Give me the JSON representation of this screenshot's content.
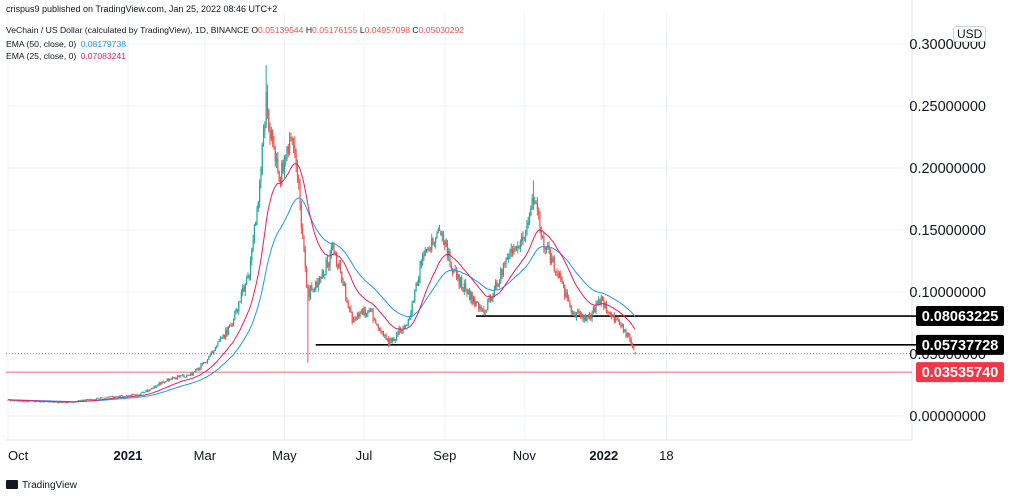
{
  "header": {
    "published": "crispus9 published on TradingView.com, Jan 25, 2022 08:46 UTC+2",
    "symbol": "VeChain / US Dollar (calculated by TradingView), 1D, BINANCE",
    "ohlc": [
      {
        "k": "O",
        "v": "0.05139544"
      },
      {
        "k": "H",
        "v": "0.05176155"
      },
      {
        "k": "L",
        "v": "0.04957098"
      },
      {
        "k": "C",
        "v": "0.05030292"
      }
    ],
    "ema50_label": "EMA (50, close, 0)",
    "ema50_value": "0.08179738",
    "ema25_label": "EMA (25, close, 0)",
    "ema25_value": "0.07083241"
  },
  "currency": "USD",
  "footer": {
    "brand": "TradingView"
  },
  "colors": {
    "up": "#26a69a",
    "down": "#ef5350",
    "ema50": "#2196f3",
    "ema25": "#e91e63",
    "support": "#000000",
    "marker": "#f23645"
  },
  "chart_data": {
    "type": "candlestick",
    "y_scale": "linear",
    "ylim": [
      -0.02,
      0.32
    ],
    "grid": true,
    "y_ticks": [
      "0.00000000",
      "0.05000000",
      "0.10000000",
      "0.15000000",
      "0.20000000",
      "0.25000000",
      "0.30000000"
    ],
    "x_ticks": [
      "Oct",
      "2021",
      "Mar",
      "May",
      "Jul",
      "Sep",
      "Nov",
      "2022",
      "18"
    ],
    "price_path": [
      {
        "date": "2020-10-01",
        "price": 0.0125
      },
      {
        "date": "2020-11-15",
        "price": 0.011
      },
      {
        "date": "2020-12-20",
        "price": 0.0155
      },
      {
        "date": "2021-01-10",
        "price": 0.0175
      },
      {
        "date": "2021-01-31",
        "price": 0.029
      },
      {
        "date": "2021-02-20",
        "price": 0.034
      },
      {
        "date": "2021-03-05",
        "price": 0.048
      },
      {
        "date": "2021-03-22",
        "price": 0.075
      },
      {
        "date": "2021-04-05",
        "price": 0.12
      },
      {
        "date": "2021-04-12",
        "price": 0.19
      },
      {
        "date": "2021-04-17",
        "price": 0.25
      },
      {
        "date": "2021-04-27",
        "price": 0.19
      },
      {
        "date": "2021-05-08",
        "price": 0.225
      },
      {
        "date": "2021-05-13",
        "price": 0.17
      },
      {
        "date": "2021-05-19",
        "price": 0.098
      },
      {
        "date": "2021-05-28",
        "price": 0.11
      },
      {
        "date": "2021-06-08",
        "price": 0.135
      },
      {
        "date": "2021-06-22",
        "price": 0.078
      },
      {
        "date": "2021-07-05",
        "price": 0.086
      },
      {
        "date": "2021-07-20",
        "price": 0.059
      },
      {
        "date": "2021-08-05",
        "price": 0.078
      },
      {
        "date": "2021-08-15",
        "price": 0.13
      },
      {
        "date": "2021-08-30",
        "price": 0.148
      },
      {
        "date": "2021-09-07",
        "price": 0.116
      },
      {
        "date": "2021-09-22",
        "price": 0.095
      },
      {
        "date": "2021-10-01",
        "price": 0.082
      },
      {
        "date": "2021-10-15",
        "price": 0.118
      },
      {
        "date": "2021-11-01",
        "price": 0.145
      },
      {
        "date": "2021-11-08",
        "price": 0.175
      },
      {
        "date": "2021-11-16",
        "price": 0.14
      },
      {
        "date": "2021-11-28",
        "price": 0.112
      },
      {
        "date": "2021-12-08",
        "price": 0.082
      },
      {
        "date": "2021-12-20",
        "price": 0.079
      },
      {
        "date": "2021-12-30",
        "price": 0.093
      },
      {
        "date": "2022-01-12",
        "price": 0.076
      },
      {
        "date": "2022-01-20",
        "price": 0.063
      },
      {
        "date": "2022-01-25",
        "price": 0.0503
      }
    ],
    "extremes": [
      {
        "date": "2021-04-17",
        "high": 0.283
      },
      {
        "date": "2021-05-19",
        "low": 0.043
      },
      {
        "date": "2021-11-08",
        "high": 0.19
      }
    ],
    "ema": [
      {
        "name": "EMA (50, close, 0)",
        "period": 50,
        "color": "#2196f3"
      },
      {
        "name": "EMA (25, close, 0)",
        "period": 25,
        "color": "#e91e63"
      }
    ],
    "hlines": [
      {
        "label": "0.08063225",
        "value": 0.08063225,
        "from": "2021-09-25",
        "style": "black-line"
      },
      {
        "label": "0.05737728",
        "value": 0.05737728,
        "from": "2021-05-25",
        "style": "black-line"
      },
      {
        "label": "0.03535740",
        "value": 0.0353574,
        "from": "2020-10-01",
        "style": "red-thin"
      }
    ],
    "last_price": 0.05030292,
    "current_price_line": 0.05030292
  }
}
